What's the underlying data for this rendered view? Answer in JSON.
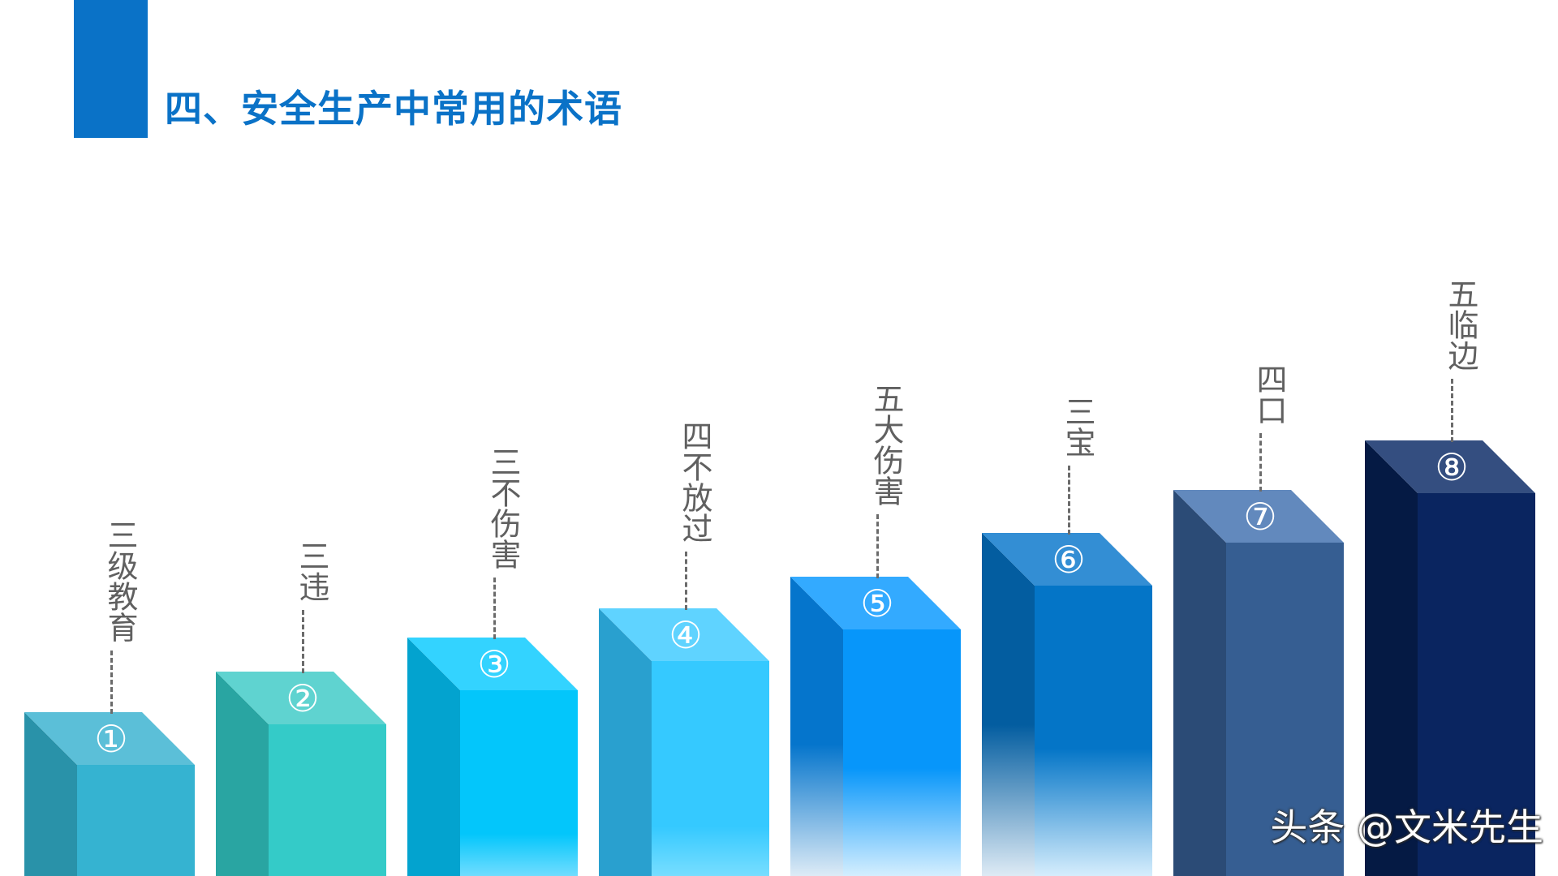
{
  "title": "四、安全生产中常用的术语",
  "watermark": "头条 @文米先生",
  "colors": {
    "accent": "#0a72c7",
    "label_text": "#606060",
    "connector": "#6b6b6b"
  },
  "items": [
    {
      "number": "①",
      "label": "三级教育",
      "top": "#5bbfd8",
      "front": "#35b3d1",
      "side": "#2992a9",
      "fade": false
    },
    {
      "number": "②",
      "label": "三违",
      "top": "#5fd3d0",
      "front": "#34cbc8",
      "side": "#29a5a2",
      "fade": false
    },
    {
      "number": "③",
      "label": "三不伤害",
      "top": "#33d3ff",
      "front": "#03c6fb",
      "side": "#03a3cf",
      "fade": false
    },
    {
      "number": "④",
      "label": "四不放过",
      "top": "#5fd3ff",
      "front": "#35c9ff",
      "side": "#29a0cf",
      "fade": false
    },
    {
      "number": "⑤",
      "label": "五大伤害",
      "top": "#33aaff",
      "front": "#0796fa",
      "side": "#0575cc",
      "fade": true
    },
    {
      "number": "⑥",
      "label": "三宝",
      "top": "#338ed4",
      "front": "#0475c7",
      "side": "#035da0",
      "fade": true
    },
    {
      "number": "⑦",
      "label": "四口",
      "top": "#6289bd",
      "front": "#365e92",
      "side": "#2b4b76",
      "fade": false
    },
    {
      "number": "⑧",
      "label": "五临边",
      "top": "#344e80",
      "front": "#0a2560",
      "side": "#051a44",
      "fade": false
    }
  ]
}
